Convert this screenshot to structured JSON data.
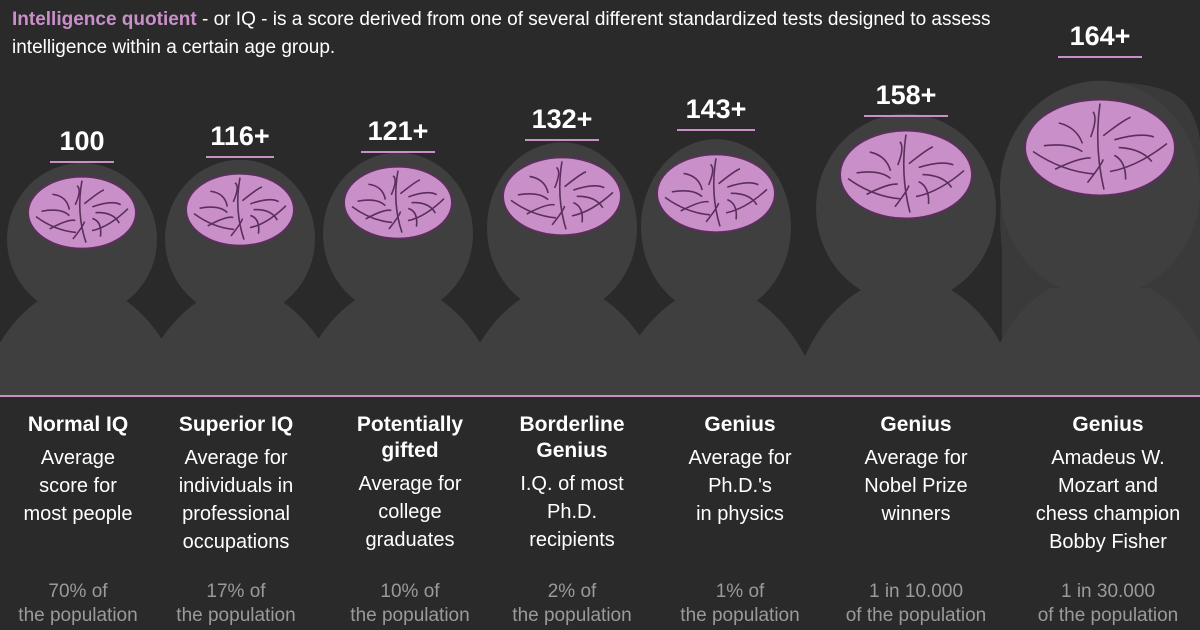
{
  "intro": {
    "highlight": "Intelligence quotient",
    "text": " - or IQ - is a score derived from one of several different standardized tests designed to assess intelligence within a certain age group."
  },
  "colors": {
    "background": "#2a2a2a",
    "silhouette": "#3f3f3f",
    "brain": "#c98fc9",
    "brain_line": "#5a2f5a",
    "accent": "#c98fc9",
    "muted": "#9a9a9a"
  },
  "columns": [
    {
      "score": "100",
      "title": "Normal IQ",
      "title2": "",
      "desc": [
        "Average",
        "score for",
        "most people"
      ],
      "pct_value": "70%",
      "pct_rest": " of",
      "pct_line2": "the population"
    },
    {
      "score": "116+",
      "title": "Superior IQ",
      "title2": "",
      "desc": [
        "Average for",
        "individuals in",
        "professional",
        "occupations"
      ],
      "pct_value": "17%",
      "pct_rest": " of",
      "pct_line2": "the population"
    },
    {
      "score": "121+",
      "title": "Potentially",
      "title2": "gifted",
      "desc": [
        "Average for",
        "college",
        "graduates"
      ],
      "pct_value": "10%",
      "pct_rest": " of",
      "pct_line2": "the population"
    },
    {
      "score": "132+",
      "title": "Borderline",
      "title2": "Genius",
      "desc": [
        "I.Q. of most",
        "Ph.D.",
        "recipients"
      ],
      "pct_value": "2%",
      "pct_rest": " of",
      "pct_line2": "the population"
    },
    {
      "score": "143+",
      "title": "Genius",
      "title2": "",
      "desc": [
        "Average for",
        "Ph.D.'s",
        "in physics"
      ],
      "pct_value": "1%",
      "pct_rest": " of",
      "pct_line2": "the population"
    },
    {
      "score": "158+",
      "title": "Genius",
      "title2": "",
      "desc": [
        "Average for",
        "Nobel Prize",
        "winners"
      ],
      "pct_value": "1 in 10.000",
      "pct_rest": "",
      "pct_line2": "of the population"
    },
    {
      "score": "164+",
      "title": "Genius",
      "title2": "",
      "desc": [
        "Amadeus W.",
        "Mozart and",
        "chess champion",
        "Bobby Fisher"
      ],
      "pct_value": "1 in 30.000",
      "pct_rest": "",
      "pct_line2": "of the population"
    }
  ]
}
